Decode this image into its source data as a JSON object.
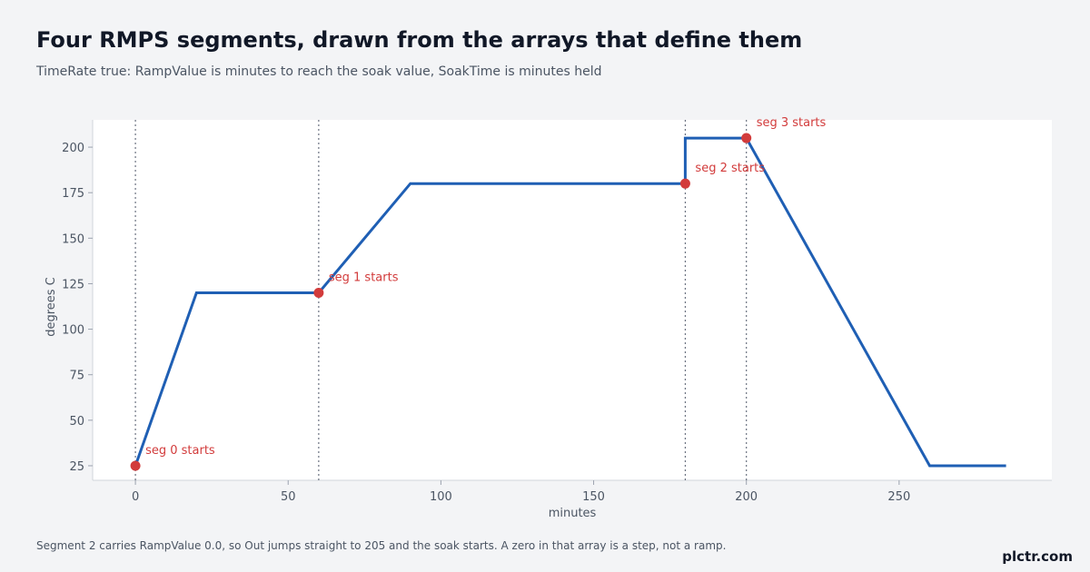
{
  "title": "Four RMPS segments, drawn from the arrays that define them",
  "subtitle": "TimeRate true: RampValue is minutes to reach the soak value, SoakTime is minutes held",
  "footnote": "Segment 2 carries RampValue 0.0, so Out jumps straight to 205 and the soak starts. A zero in that array is a step, not a ramp.",
  "brand": "plctr.com",
  "colors": {
    "line": "#1f5fb4",
    "marker": "#d23b3b",
    "plot_bg": "#ffffff",
    "page_bg": "#f3f4f6"
  },
  "chart_data": {
    "type": "line",
    "title": "Four RMPS segments, drawn from the arrays that define them",
    "subtitle": "TimeRate true: RampValue is minutes to reach the soak value, SoakTime is minutes held",
    "xlabel": "minutes",
    "ylabel": "degrees C",
    "xlim": [
      -14,
      300
    ],
    "ylim": [
      17,
      215
    ],
    "xticks": [
      0,
      50,
      100,
      150,
      200,
      250
    ],
    "yticks": [
      25,
      50,
      75,
      100,
      125,
      150,
      175,
      200
    ],
    "grid": false,
    "series": [
      {
        "x": [
          0,
          20,
          60,
          90,
          180,
          180,
          200,
          260,
          285
        ],
        "y": [
          25,
          120,
          120,
          180,
          180,
          205,
          205,
          25,
          25
        ]
      }
    ],
    "segment_starts": [
      {
        "x": 0,
        "y": 25,
        "label": "seg 0 starts"
      },
      {
        "x": 60,
        "y": 120,
        "label": "seg 1 starts"
      },
      {
        "x": 180,
        "y": 180,
        "label": "seg 2 starts"
      },
      {
        "x": 200,
        "y": 205,
        "label": "seg 3 starts"
      }
    ]
  }
}
